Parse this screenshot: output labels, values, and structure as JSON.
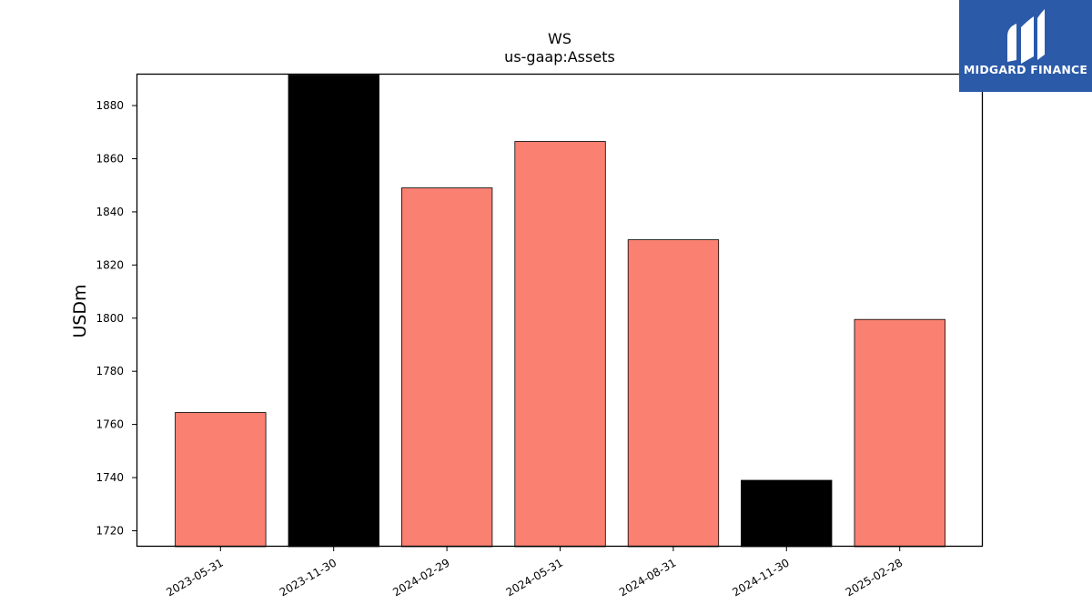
{
  "chart_data": {
    "type": "bar",
    "title": "WS",
    "subtitle": "us-gaap:Assets",
    "xlabel": "",
    "ylabel": "USDm",
    "categories": [
      "2023-05-31",
      "2023-11-30",
      "2024-02-29",
      "2024-05-31",
      "2024-08-31",
      "2024-11-30",
      "2025-02-28"
    ],
    "values": [
      1764.5,
      1891.5,
      1849,
      1866.5,
      1829.5,
      1739,
      1799.5
    ],
    "bar_colors": [
      "#fa8072",
      "#000000",
      "#fa8072",
      "#fa8072",
      "#fa8072",
      "#000000",
      "#fa8072"
    ],
    "ylim": [
      1714,
      1892
    ],
    "yticks": [
      1720,
      1740,
      1760,
      1780,
      1800,
      1820,
      1840,
      1860,
      1880
    ],
    "grid": false
  },
  "logo": {
    "text": "MIDGARD FINANCE",
    "background": "#2b5aa8"
  }
}
